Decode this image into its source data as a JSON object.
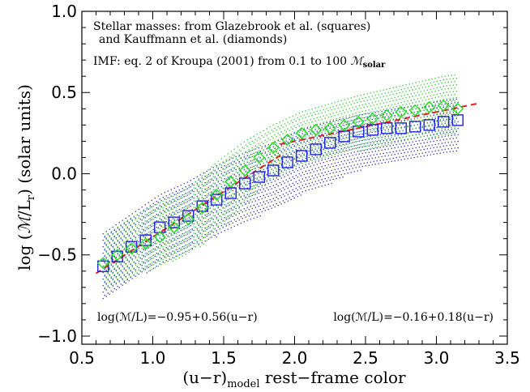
{
  "chart_data": {
    "type": "scatter",
    "xlim": [
      0.5,
      3.5
    ],
    "ylim": [
      -1.05,
      1.0
    ],
    "xticks": [
      "0.5",
      "1.0",
      "1.5",
      "2.0",
      "2.5",
      "3.0",
      "3.5"
    ],
    "xtick_values": [
      0.5,
      1.0,
      1.5,
      2.0,
      2.5,
      3.0,
      3.5
    ],
    "yticks": [
      "1.0",
      "0.5",
      "0.0",
      "−0.5",
      "−1.0"
    ],
    "ytick_values": [
      1.0,
      0.5,
      0.0,
      -0.5,
      -1.0
    ],
    "xlabel": {
      "main": "(u−r)",
      "sub": "model",
      "rest": " rest−frame color"
    },
    "ylabel": {
      "pre": "log (",
      "script_m": "ℳ",
      "mid": "/L",
      "sub": "r",
      "post": ") (solar units)"
    },
    "annotations": {
      "line1": "Stellar masses: from Glazebrook et al. (squares)",
      "line2": "and Kauffmann et al. (diamonds)",
      "line3_pre": "IMF: eq. 2 of Kroupa (2001) from 0.1 to 100 ",
      "line3_m": "ℳ",
      "line3_sub": "solar",
      "fit_left": "log(ℳ/L)=−0.95+0.56(u−r)",
      "fit_right": "log(ℳ/L)=−0.16+0.18(u−r)"
    },
    "series": [
      {
        "name": "Glazebrook et al. (squares)",
        "marker": "square",
        "color": "#2222dd",
        "x": [
          0.65,
          0.75,
          0.85,
          0.95,
          1.05,
          1.15,
          1.25,
          1.35,
          1.45,
          1.55,
          1.65,
          1.75,
          1.85,
          1.95,
          2.05,
          2.15,
          2.25,
          2.35,
          2.45,
          2.55,
          2.65,
          2.75,
          2.85,
          2.95,
          3.05,
          3.15
        ],
        "y": [
          -0.57,
          -0.51,
          -0.45,
          -0.41,
          -0.33,
          -0.3,
          -0.26,
          -0.2,
          -0.16,
          -0.12,
          -0.06,
          -0.02,
          0.02,
          0.07,
          0.11,
          0.15,
          0.19,
          0.23,
          0.26,
          0.27,
          0.28,
          0.28,
          0.29,
          0.3,
          0.32,
          0.33
        ]
      },
      {
        "name": "Kauffmann et al. (diamonds)",
        "marker": "diamond",
        "color": "#22dd22",
        "x": [
          0.65,
          0.75,
          0.85,
          0.95,
          1.05,
          1.15,
          1.25,
          1.35,
          1.45,
          1.55,
          1.65,
          1.75,
          1.85,
          1.95,
          2.05,
          2.15,
          2.25,
          2.35,
          2.45,
          2.55,
          2.65,
          2.75,
          2.85,
          2.95,
          3.05,
          3.15
        ],
        "y": [
          -0.55,
          -0.5,
          -0.46,
          -0.43,
          -0.39,
          -0.33,
          -0.28,
          -0.21,
          -0.13,
          -0.05,
          0.02,
          0.1,
          0.16,
          0.21,
          0.25,
          0.27,
          0.28,
          0.3,
          0.32,
          0.34,
          0.36,
          0.38,
          0.39,
          0.41,
          0.42,
          0.4
        ]
      }
    ],
    "bands": [
      {
        "name": "blue-scatter",
        "color": "#3333cc",
        "x": [
          0.65,
          0.85,
          1.05,
          1.25,
          1.45,
          1.65,
          1.85,
          2.05,
          2.25,
          2.45,
          2.65,
          2.85,
          3.05,
          3.15
        ],
        "low": [
          -0.78,
          -0.66,
          -0.56,
          -0.48,
          -0.39,
          -0.3,
          -0.22,
          -0.13,
          -0.06,
          0.02,
          0.07,
          0.1,
          0.13,
          0.14
        ],
        "high": [
          -0.37,
          -0.25,
          -0.13,
          -0.05,
          0.05,
          0.13,
          0.19,
          0.27,
          0.32,
          0.36,
          0.39,
          0.42,
          0.45,
          0.46
        ]
      },
      {
        "name": "green-scatter",
        "color": "#33cc33",
        "x": [
          0.65,
          0.85,
          1.05,
          1.25,
          1.45,
          1.65,
          1.85,
          2.05,
          2.25,
          2.45,
          2.65,
          2.85,
          3.05,
          3.15
        ],
        "low": [
          -0.72,
          -0.64,
          -0.57,
          -0.5,
          -0.37,
          -0.19,
          -0.03,
          0.06,
          0.1,
          0.14,
          0.18,
          0.21,
          0.23,
          0.24
        ],
        "high": [
          -0.38,
          -0.26,
          -0.17,
          -0.08,
          0.08,
          0.21,
          0.31,
          0.39,
          0.44,
          0.49,
          0.53,
          0.57,
          0.61,
          0.62
        ]
      }
    ],
    "fits": [
      {
        "name": "fit-left",
        "intercept": -0.95,
        "slope": 0.56,
        "x_range": [
          0.6,
          1.9
        ],
        "color": "#dd2222"
      },
      {
        "name": "fit-right",
        "intercept": -0.16,
        "slope": 0.18,
        "x_range": [
          1.9,
          3.3
        ],
        "color": "#dd2222"
      }
    ]
  }
}
